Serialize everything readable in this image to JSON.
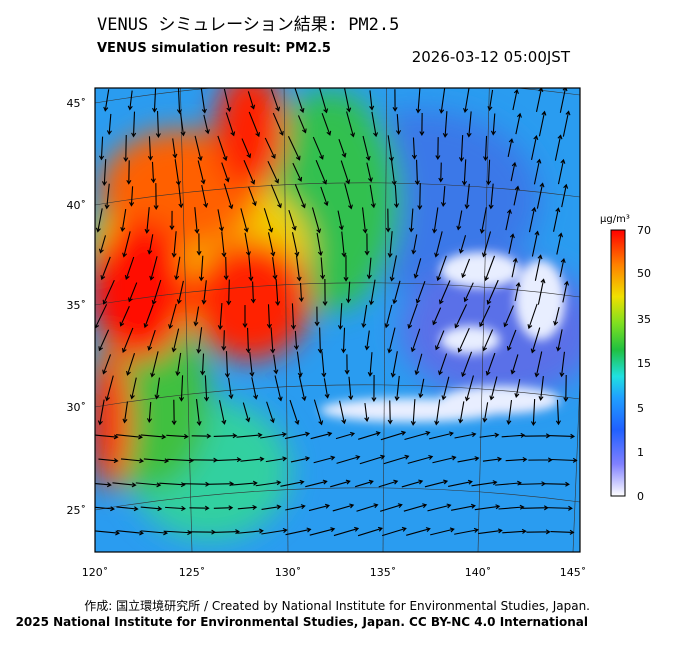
{
  "header": {
    "title_jp": "VENUS シミュレーション結果: PM2.5",
    "title_en": "VENUS simulation result: PM2.5",
    "datetime": "2026-03-12 05:00JST"
  },
  "map": {
    "lat_labels": [
      "45˚",
      "40˚",
      "35˚",
      "30˚",
      "25˚"
    ],
    "lon_labels": [
      "120˚",
      "125˚",
      "130˚",
      "135˚",
      "140˚",
      "145˚"
    ]
  },
  "colorbar": {
    "unit": "μg/m³",
    "labels": [
      "70",
      "50",
      "35",
      "15",
      "5",
      "1",
      "0"
    ]
  },
  "footer": {
    "credit": "作成: 国立環境研究所 / Created by National Institute for Environmental Studies, Japan.",
    "license": "2025 National Institute for Environmental Studies, Japan. CC BY-NC 4.0 International"
  }
}
